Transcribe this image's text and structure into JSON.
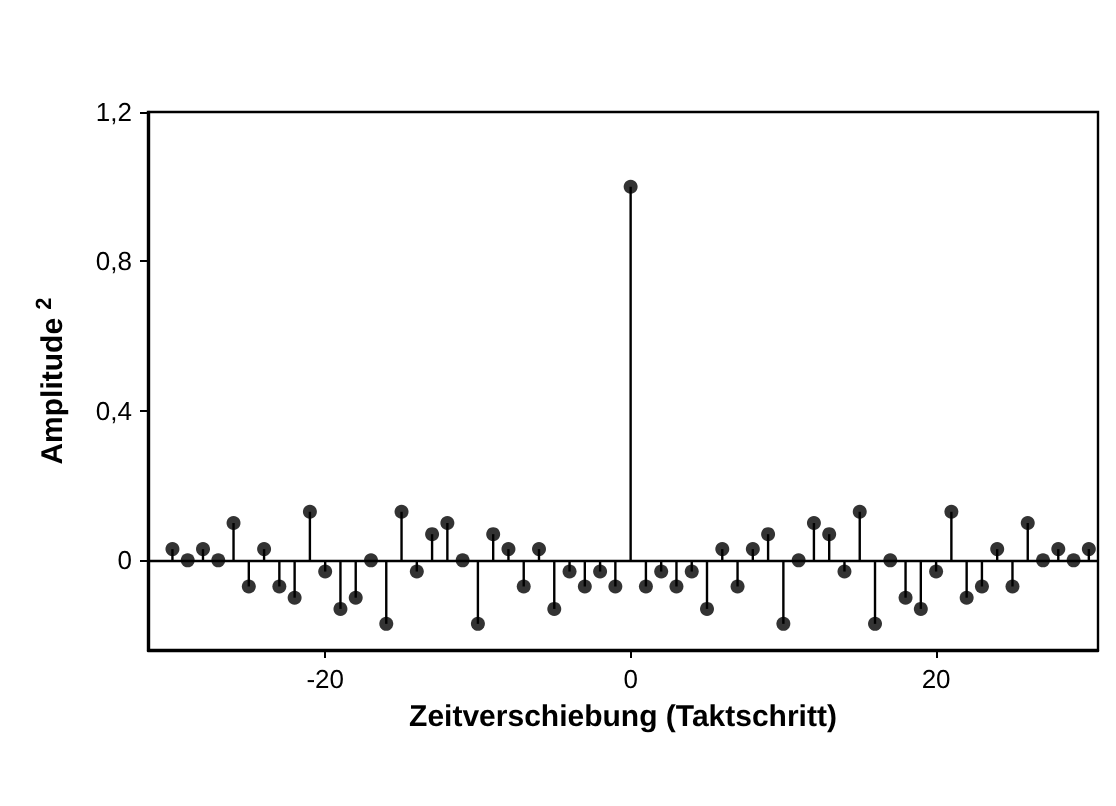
{
  "chart_data": {
    "type": "lollipop",
    "xlabel": "Zeitverschiebung (Taktschritt)",
    "ylabel": "Amplitude $^{2}$",
    "x": [
      -30,
      -29,
      -28,
      -27,
      -26,
      -25,
      -24,
      -23,
      -22,
      -21,
      -20,
      -19,
      -18,
      -17,
      -16,
      -15,
      -14,
      -13,
      -12,
      -11,
      -10,
      -9,
      -8,
      -7,
      -6,
      -5,
      -4,
      -3,
      -2,
      -1,
      0,
      1,
      2,
      3,
      4,
      5,
      6,
      7,
      8,
      9,
      10,
      11,
      12,
      13,
      14,
      15,
      16,
      17,
      18,
      19,
      20,
      21,
      22,
      23,
      24,
      25,
      26,
      27,
      28,
      29,
      30
    ],
    "values": [
      0.03,
      0,
      0.03,
      0,
      0.1,
      -0.07,
      0.03,
      -0.07,
      -0.1,
      0.13,
      -0.03,
      -0.13,
      -0.1,
      0,
      -0.17,
      0.13,
      -0.03,
      0.07,
      0.1,
      0,
      -0.17,
      0.07,
      0.03,
      -0.07,
      0.03,
      -0.13,
      -0.03,
      -0.07,
      -0.03,
      -0.07,
      1,
      -0.07,
      -0.03,
      -0.07,
      -0.03,
      -0.13,
      0.03,
      -0.07,
      0.03,
      0.07,
      -0.17,
      0,
      0.1,
      0.07,
      -0.03,
      0.13,
      -0.17,
      0,
      -0.1,
      -0.13,
      -0.03,
      0.13,
      -0.1,
      -0.07,
      0.03,
      -0.07,
      0.1,
      0,
      0.03,
      0,
      0.03
    ],
    "color": "#000000",
    "marker": "circle",
    "xlim": [
      -31.6,
      30.6
    ],
    "xticks": [
      -20,
      0,
      20
    ],
    "ylim": [
      -0.24,
      1.2
    ],
    "yticks": [
      0,
      {
        "value": 0.4,
        "label": "0,4"
      },
      {
        "value": 0.8,
        "label": "0,8"
      },
      {
        "value": 1.2,
        "label": "1,2"
      }
    ],
    "ref_lines": [
      {
        "axis": "y",
        "value": 0
      }
    ]
  }
}
